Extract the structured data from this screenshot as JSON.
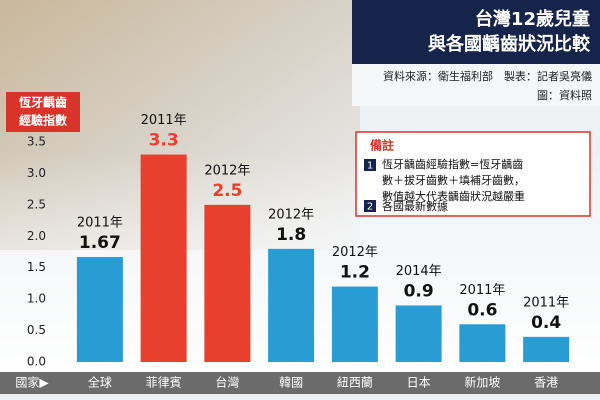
{
  "chart_data": {
    "type": "bar",
    "title": [
      "台灣12歲兒童",
      "與各國齲齒狀況比較"
    ],
    "source": [
      "資料來源：衛生福利部　製表：記者吳亮儀",
      "圖：資料照"
    ],
    "ylabel": [
      "恆牙齲齒",
      "經驗指數"
    ],
    "xlabel": "國家▶",
    "categories": [
      "全球",
      "菲律賓",
      "台灣",
      "韓國",
      "紐西蘭",
      "日本",
      "新加坡",
      "香港"
    ],
    "years": [
      "2011年",
      "2011年",
      "2012年",
      "2012年",
      "2012年",
      "2014年",
      "2011年",
      "2011年"
    ],
    "values": [
      1.67,
      3.3,
      2.5,
      1.8,
      1.2,
      0.9,
      0.6,
      0.4
    ],
    "colors": [
      "#2a9cd4",
      "#e8402e",
      "#e8402e",
      "#2a9cd4",
      "#2a9cd4",
      "#2a9cd4",
      "#2a9cd4",
      "#2a9cd4"
    ],
    "ylim": [
      0,
      3.5
    ],
    "yticks": [
      {
        "value": 0,
        "label": "0.0"
      },
      0.5,
      {
        "value": 1,
        "label": "1.0"
      },
      1.5,
      {
        "value": 2,
        "label": "2.0"
      },
      2.5,
      {
        "value": 3,
        "label": "3.0"
      },
      3.5
    ],
    "notes": {
      "title": "備註",
      "items": [
        {
          "number": "1",
          "lines": [
            "恆牙齲齒經驗指數=恆牙齲齒",
            "數＋拔牙齒數＋填補牙齒數，",
            "數值越大代表齲齒狀況越嚴重"
          ]
        },
        {
          "number": "2",
          "lines": [
            "各國最新數據"
          ]
        }
      ]
    }
  }
}
